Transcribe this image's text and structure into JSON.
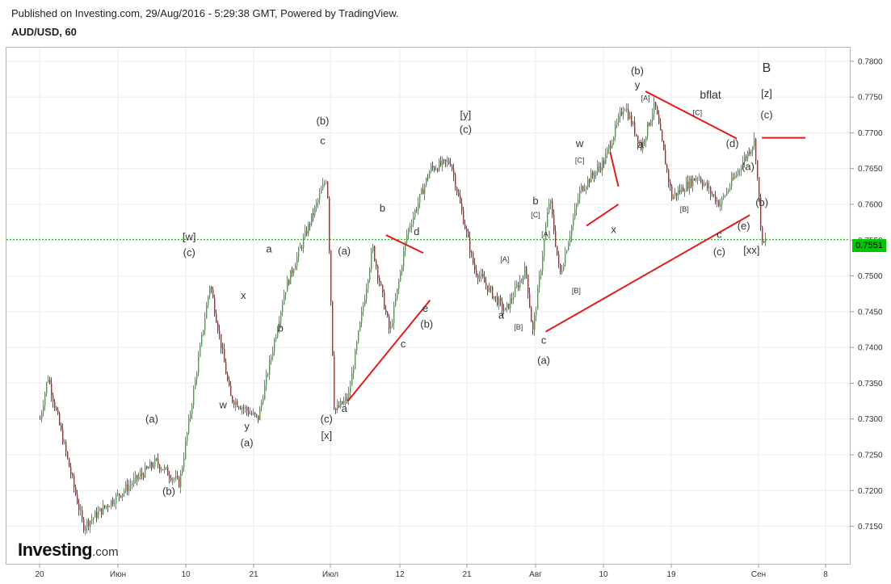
{
  "header": {
    "published": "Published on Investing.com, 29/Aug/2016 - 5:29:38 GMT, Powered by TradingView.",
    "symbol": "AUD/USD, 60"
  },
  "logo": {
    "brand": "Investing",
    "domain": ".com"
  },
  "current_price": "0.7551",
  "colors": {
    "up": "#2db52d",
    "down": "#d11a1a",
    "trendline": "#e31a1a",
    "price_line": "#00b400",
    "grid": "#ebebeb"
  },
  "chart_data": {
    "type": "candlestick",
    "ylim": [
      0.711,
      0.781
    ],
    "y_ticks": [
      "0.7150",
      "0.7200",
      "0.7250",
      "0.7300",
      "0.7350",
      "0.7400",
      "0.7450",
      "0.7500",
      "0.7550",
      "0.7600",
      "0.7650",
      "0.7700",
      "0.7750",
      "0.7800"
    ],
    "x_ticks": [
      "20",
      "Июн",
      "10",
      "21",
      "Июл",
      "12",
      "21",
      "Авг",
      "10",
      "19",
      "Сен",
      "8"
    ],
    "last_value": 0.7551,
    "price_path_note_x": [
      "20",
      "Июн",
      "10",
      "21",
      "Июл",
      "12",
      "21",
      "Авг",
      "10",
      "19"
    ],
    "key_points": [
      {
        "x_index": 0.0,
        "y": 0.73
      },
      {
        "x_index": 0.1,
        "y": 0.736
      },
      {
        "x_index": 0.55,
        "y": 0.715
      },
      {
        "x_index": 1.55,
        "y": 0.724
      },
      {
        "x_index": 1.9,
        "y": 0.721
      },
      {
        "x_index": 2.35,
        "y": 0.749
      },
      {
        "x_index": 2.65,
        "y": 0.733
      },
      {
        "x_index": 3.05,
        "y": 0.73
      },
      {
        "x_index": 3.4,
        "y": 0.748
      },
      {
        "x_index": 3.95,
        "y": 0.764
      },
      {
        "x_index": 4.05,
        "y": 0.731
      },
      {
        "x_index": 4.25,
        "y": 0.733
      },
      {
        "x_index": 4.6,
        "y": 0.754
      },
      {
        "x_index": 4.85,
        "y": 0.742
      },
      {
        "x_index": 5.1,
        "y": 0.756
      },
      {
        "x_index": 5.45,
        "y": 0.765
      },
      {
        "x_index": 5.75,
        "y": 0.766
      },
      {
        "x_index": 6.1,
        "y": 0.751
      },
      {
        "x_index": 6.55,
        "y": 0.745
      },
      {
        "x_index": 6.85,
        "y": 0.751
      },
      {
        "x_index": 6.95,
        "y": 0.742
      },
      {
        "x_index": 7.2,
        "y": 0.761
      },
      {
        "x_index": 7.35,
        "y": 0.75
      },
      {
        "x_index": 7.65,
        "y": 0.762
      },
      {
        "x_index": 8.0,
        "y": 0.766
      },
      {
        "x_index": 8.3,
        "y": 0.774
      },
      {
        "x_index": 8.55,
        "y": 0.768
      },
      {
        "x_index": 8.75,
        "y": 0.774
      },
      {
        "x_index": 9.0,
        "y": 0.761
      },
      {
        "x_index": 9.3,
        "y": 0.764
      },
      {
        "x_index": 9.55,
        "y": 0.76
      },
      {
        "x_index": 9.95,
        "y": 0.769
      },
      {
        "x_index": 10.05,
        "y": 0.754
      },
      {
        "x_index": 10.1,
        "y": 0.7551
      }
    ],
    "annotations": [
      {
        "text": "[w]",
        "x_index": 2.05,
        "y": 0.755
      },
      {
        "text": "(c)",
        "x_index": 2.05,
        "y": 0.7528
      },
      {
        "text": "x",
        "x_index": 2.85,
        "y": 0.7468
      },
      {
        "text": "w",
        "x_index": 2.55,
        "y": 0.7315
      },
      {
        "text": "y",
        "x_index": 2.9,
        "y": 0.7285
      },
      {
        "text": "(a)",
        "x_index": 2.9,
        "y": 0.7262
      },
      {
        "text": "(a)",
        "x_index": 1.5,
        "y": 0.7295
      },
      {
        "text": "(b)",
        "x_index": 1.75,
        "y": 0.7194
      },
      {
        "text": "a",
        "x_index": 3.2,
        "y": 0.7533
      },
      {
        "text": "b",
        "x_index": 3.35,
        "y": 0.7422
      },
      {
        "text": "(b)",
        "x_index": 3.9,
        "y": 0.7712
      },
      {
        "text": "c",
        "x_index": 3.9,
        "y": 0.7684
      },
      {
        "text": "(a)",
        "x_index": 4.2,
        "y": 0.753
      },
      {
        "text": "(c)",
        "x_index": 3.95,
        "y": 0.7295
      },
      {
        "text": "[x]",
        "x_index": 3.95,
        "y": 0.7272
      },
      {
        "text": "a",
        "x_index": 4.2,
        "y": 0.731
      },
      {
        "text": "b",
        "x_index": 4.75,
        "y": 0.759
      },
      {
        "text": "d",
        "x_index": 5.25,
        "y": 0.7557
      },
      {
        "text": "c",
        "x_index": 5.05,
        "y": 0.74
      },
      {
        "text": "e",
        "x_index": 5.38,
        "y": 0.745
      },
      {
        "text": "(b)",
        "x_index": 5.4,
        "y": 0.7428
      },
      {
        "text": "[y]",
        "x_index": 5.98,
        "y": 0.772
      },
      {
        "text": "(c)",
        "x_index": 5.98,
        "y": 0.77
      },
      {
        "text": "[A]",
        "x_index": 6.55,
        "y": 0.752
      },
      {
        "text": "a",
        "x_index": 6.5,
        "y": 0.744
      },
      {
        "text": "[B]",
        "x_index": 6.75,
        "y": 0.7425
      },
      {
        "text": "b",
        "x_index": 7.0,
        "y": 0.76
      },
      {
        "text": "[C]",
        "x_index": 7.0,
        "y": 0.7582
      },
      {
        "text": "[A]",
        "x_index": 7.15,
        "y": 0.7555
      },
      {
        "text": "c",
        "x_index": 7.12,
        "y": 0.7405
      },
      {
        "text": "(a)",
        "x_index": 7.12,
        "y": 0.7377
      },
      {
        "text": "w",
        "x_index": 7.65,
        "y": 0.768
      },
      {
        "text": "[C]",
        "x_index": 7.65,
        "y": 0.7658
      },
      {
        "text": "[B]",
        "x_index": 7.6,
        "y": 0.7476
      },
      {
        "text": "x",
        "x_index": 8.15,
        "y": 0.756
      },
      {
        "text": "(b)",
        "x_index": 8.5,
        "y": 0.7782
      },
      {
        "text": "y",
        "x_index": 8.5,
        "y": 0.7762
      },
      {
        "text": "[A]",
        "x_index": 8.62,
        "y": 0.7745
      },
      {
        "text": "a",
        "x_index": 8.55,
        "y": 0.7679
      },
      {
        "text": "bflat",
        "x_index": 9.45,
        "y": 0.7748
      },
      {
        "text": "[C]",
        "x_index": 9.3,
        "y": 0.7725
      },
      {
        "text": "(d)",
        "x_index": 9.7,
        "y": 0.768
      },
      {
        "text": "[B]",
        "x_index": 9.15,
        "y": 0.759
      },
      {
        "text": "(a)",
        "x_index": 9.88,
        "y": 0.7648
      },
      {
        "text": "(b)",
        "x_index": 10.05,
        "y": 0.7598
      },
      {
        "text": "(e)",
        "x_index": 9.83,
        "y": 0.7565
      },
      {
        "text": "c",
        "x_index": 9.55,
        "y": 0.7553
      },
      {
        "text": "(c)",
        "x_index": 9.55,
        "y": 0.7529
      },
      {
        "text": "[xx]",
        "x_index": 9.92,
        "y": 0.7531
      },
      {
        "text": "B",
        "x_index": 10.12,
        "y": 0.7785
      },
      {
        "text": "[z]",
        "x_index": 10.12,
        "y": 0.775
      },
      {
        "text": "(c)",
        "x_index": 10.12,
        "y": 0.772
      }
    ],
    "trendlines": [
      {
        "from": {
          "x_index": 4.25,
          "y": 0.7325
        },
        "to": {
          "x_index": 5.45,
          "y": 0.7466
        }
      },
      {
        "from": {
          "x_index": 4.8,
          "y": 0.7557
        },
        "to": {
          "x_index": 5.35,
          "y": 0.7532
        }
      },
      {
        "from": {
          "x_index": 7.15,
          "y": 0.7422
        },
        "to": {
          "x_index": 9.9,
          "y": 0.7585
        }
      },
      {
        "from": {
          "x_index": 7.75,
          "y": 0.757
        },
        "to": {
          "x_index": 8.22,
          "y": 0.76
        }
      },
      {
        "from": {
          "x_index": 8.1,
          "y": 0.7673
        },
        "to": {
          "x_index": 8.22,
          "y": 0.7625
        }
      },
      {
        "from": {
          "x_index": 8.62,
          "y": 0.7758
        },
        "to": {
          "x_index": 9.75,
          "y": 0.7692
        }
      },
      {
        "from": {
          "x_index": 10.05,
          "y": 0.7693
        },
        "to": {
          "x_index": 10.7,
          "y": 0.7693
        }
      }
    ]
  }
}
